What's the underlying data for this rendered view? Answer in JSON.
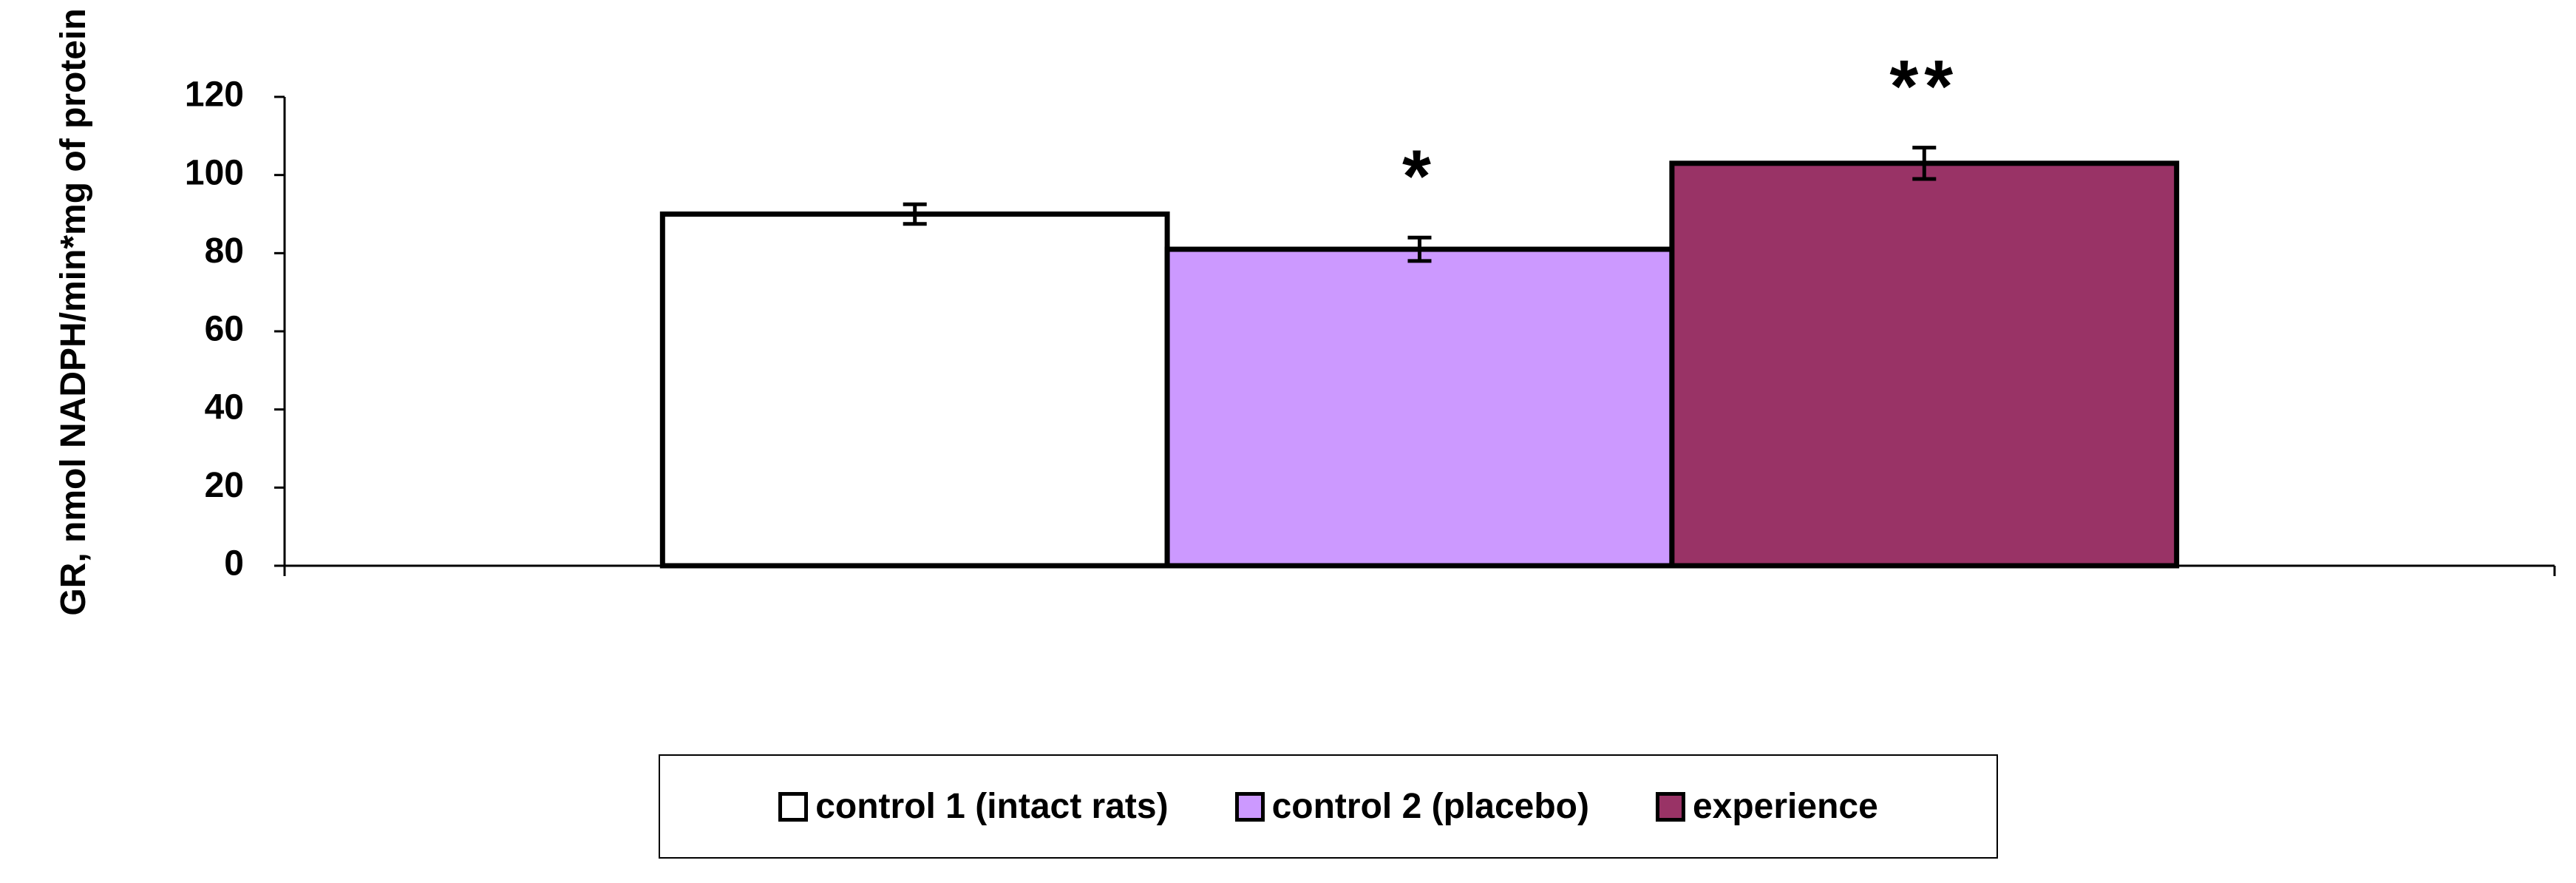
{
  "chart_data": {
    "type": "bar",
    "y_label": "GR, nmol NADPH/min*mg of protein",
    "categories": [
      null
    ],
    "series": [
      {
        "name": "control 1 (intact rats)",
        "color": "#ffffff",
        "values": [
          90
        ],
        "errors": [
          2.5
        ]
      },
      {
        "name": "control 2 (placebo)",
        "color": "#cc99ff",
        "values": [
          81
        ],
        "errors": [
          3
        ],
        "annotation": "*"
      },
      {
        "name": "experience",
        "color": "#993366",
        "values": [
          103
        ],
        "errors": [
          4
        ],
        "annotation": "**"
      }
    ],
    "ylim": [
      0,
      120
    ],
    "yticks": [
      0,
      20,
      40,
      60,
      80,
      100,
      120
    ],
    "grid": false,
    "legend": "bottom"
  }
}
